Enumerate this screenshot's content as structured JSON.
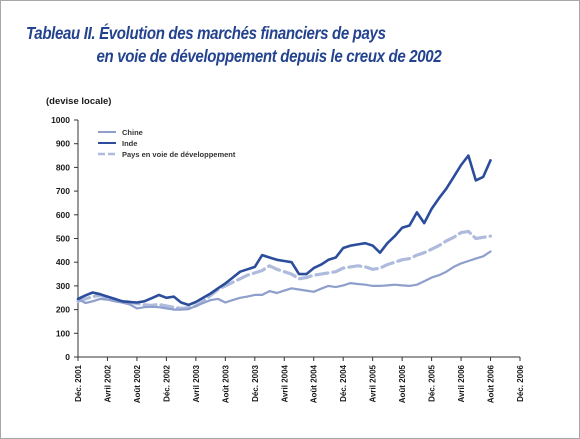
{
  "title_line1": "Tableau II.  Évolution des marchés financiers de pays",
  "title_line2": "en voie de développement depuis le creux de 2002",
  "chart_data": {
    "type": "line",
    "ylabel": "(devise locale)",
    "ylim": [
      0,
      1000
    ],
    "yticks": [
      0,
      100,
      200,
      300,
      400,
      500,
      600,
      700,
      800,
      900,
      1000
    ],
    "xlim": [
      0,
      60
    ],
    "xticks": [
      {
        "x": 0,
        "label": "Déc. 2001"
      },
      {
        "x": 4,
        "label": "Avril 2002"
      },
      {
        "x": 8,
        "label": "Août 2002"
      },
      {
        "x": 12,
        "label": "Déc. 2002"
      },
      {
        "x": 16,
        "label": "Avril 2003"
      },
      {
        "x": 20,
        "label": "Août 2003"
      },
      {
        "x": 24,
        "label": "Déc. 2003"
      },
      {
        "x": 28,
        "label": "Avril 2004"
      },
      {
        "x": 32,
        "label": "Août 2004"
      },
      {
        "x": 36,
        "label": "Déc. 2004"
      },
      {
        "x": 40,
        "label": "Avril 2005"
      },
      {
        "x": 44,
        "label": "Août 2005"
      },
      {
        "x": 48,
        "label": "Déc. 2005"
      },
      {
        "x": 52,
        "label": "Avril 2006"
      },
      {
        "x": 56,
        "label": "Août 2006"
      },
      {
        "x": 60,
        "label": "Déc. 2006"
      }
    ],
    "legend_position": "top-left",
    "grid": false,
    "series": [
      {
        "name": "Chine",
        "color": "#8e9fcc",
        "x": [
          0,
          1,
          2,
          3,
          4,
          5,
          6,
          7,
          8,
          9,
          10,
          11,
          12,
          13,
          14,
          15,
          16,
          17,
          18,
          19,
          20,
          21,
          22,
          23,
          24,
          25,
          26,
          27,
          28,
          29,
          30,
          31,
          32,
          33,
          34,
          35,
          36,
          37,
          38,
          39,
          40,
          41,
          42,
          43,
          44,
          45,
          46,
          47,
          48,
          49,
          50,
          51,
          52,
          53,
          54,
          55,
          56
        ],
        "values": [
          245,
          228,
          235,
          245,
          242,
          235,
          230,
          222,
          205,
          210,
          212,
          210,
          205,
          200,
          200,
          202,
          215,
          228,
          240,
          245,
          230,
          240,
          250,
          255,
          262,
          262,
          278,
          270,
          280,
          290,
          285,
          280,
          275,
          288,
          300,
          295,
          302,
          312,
          308,
          305,
          300,
          300,
          302,
          305,
          302,
          300,
          305,
          320,
          335,
          345,
          360,
          380,
          395,
          405,
          415,
          425,
          445
        ]
      },
      {
        "name": "Inde",
        "color": "#2b4d9b",
        "x": [
          0,
          1,
          2,
          3,
          4,
          5,
          6,
          7,
          8,
          9,
          10,
          11,
          12,
          13,
          14,
          15,
          16,
          17,
          18,
          19,
          20,
          21,
          22,
          23,
          24,
          25,
          26,
          27,
          28,
          29,
          30,
          31,
          32,
          33,
          34,
          35,
          36,
          37,
          38,
          39,
          40,
          41,
          42,
          43,
          44,
          45,
          46,
          47,
          48,
          49,
          50,
          51,
          52,
          53,
          54,
          55,
          56
        ],
        "values": [
          245,
          260,
          272,
          265,
          255,
          245,
          235,
          232,
          230,
          235,
          248,
          262,
          250,
          255,
          230,
          220,
          232,
          250,
          268,
          290,
          310,
          335,
          360,
          370,
          380,
          430,
          420,
          410,
          405,
          400,
          350,
          350,
          375,
          390,
          410,
          420,
          460,
          470,
          475,
          480,
          470,
          440,
          480,
          510,
          545,
          555,
          610,
          565,
          625,
          670,
          710,
          760,
          810,
          850,
          745,
          760,
          830
        ]
      },
      {
        "name": "Pays en voie de développement",
        "color": "#aebbdc",
        "x": [
          0,
          1,
          2,
          3,
          4,
          5,
          6,
          7,
          8,
          9,
          10,
          11,
          12,
          13,
          14,
          15,
          16,
          17,
          18,
          19,
          20,
          21,
          22,
          23,
          24,
          25,
          26,
          27,
          28,
          29,
          30,
          31,
          32,
          33,
          34,
          35,
          36,
          37,
          38,
          39,
          40,
          41,
          42,
          43,
          44,
          45,
          46,
          47,
          48,
          49,
          50,
          51,
          52,
          53,
          54,
          55,
          56
        ],
        "values": [
          235,
          245,
          255,
          260,
          250,
          240,
          235,
          232,
          225,
          220,
          218,
          222,
          215,
          210,
          205,
          208,
          215,
          235,
          260,
          285,
          300,
          315,
          330,
          345,
          355,
          365,
          385,
          370,
          360,
          350,
          330,
          335,
          345,
          350,
          355,
          360,
          375,
          380,
          385,
          380,
          370,
          375,
          390,
          400,
          410,
          415,
          430,
          440,
          455,
          470,
          490,
          505,
          525,
          530,
          500,
          505,
          510
        ]
      }
    ]
  }
}
